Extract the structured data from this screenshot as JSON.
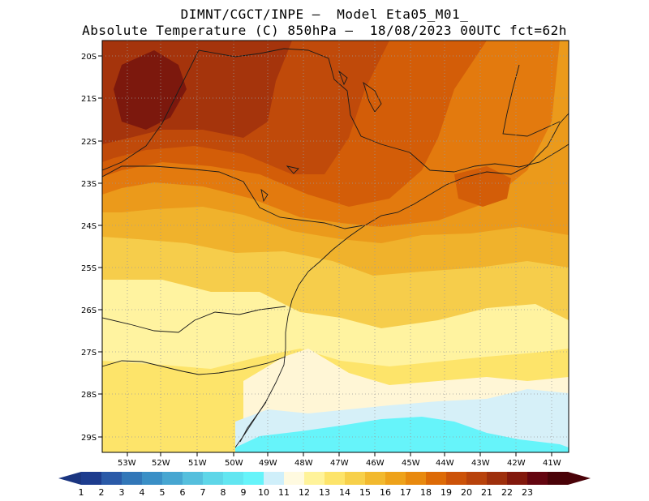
{
  "title_line1": "DIMNT/CGCT/INPE –  Model Eta05_M01_",
  "title_line2": "Absolute Temperature (C) 850hPa –  18/08/2023 00UTC fct=62h",
  "lat_labels": [
    "20S",
    "21S",
    "22S",
    "23S",
    "24S",
    "25S",
    "26S",
    "27S",
    "28S",
    "29S"
  ],
  "lon_labels": [
    "53W",
    "52W",
    "51W",
    "50W",
    "49W",
    "48W",
    "47W",
    "46W",
    "45W",
    "44W",
    "43W",
    "42W",
    "41W"
  ],
  "colorbar": {
    "labels": [
      "1",
      "2",
      "3",
      "4",
      "5",
      "6",
      "7",
      "8",
      "9",
      "10",
      "11",
      "12",
      "13",
      "14",
      "15",
      "16",
      "17",
      "18",
      "19",
      "20",
      "21",
      "22",
      "23"
    ],
    "colors": [
      "#1d3c8e",
      "#2a5aa8",
      "#3277b8",
      "#3a8fc6",
      "#47a6d1",
      "#55bfdd",
      "#5ed6e8",
      "#62e6f1",
      "#66f4fa",
      "#cfeffa",
      "#fffae0",
      "#fff39a",
      "#fde46a",
      "#f7d04a",
      "#f2b92e",
      "#eea21a",
      "#e8890e",
      "#dd6a06",
      "#cc5208",
      "#b8420b",
      "#9e2f0c",
      "#82180c",
      "#640510",
      "#4a0208"
    ],
    "underflow": "#1a3580",
    "overflow": "#4a0208"
  },
  "contour_colors": {
    "c11": "#d6f0f8",
    "c12": "#fff6d6",
    "c13": "#fff3a0",
    "c14": "#fde46a",
    "c15": "#f6cd4b",
    "c16": "#f0b22c",
    "c17": "#eb9a1b",
    "c18": "#e37a0e",
    "c19": "#d35d08",
    "c20": "#c04a0a",
    "c21": "#a5340c",
    "c22": "#7c180d",
    "c10": "#66f4fa"
  }
}
